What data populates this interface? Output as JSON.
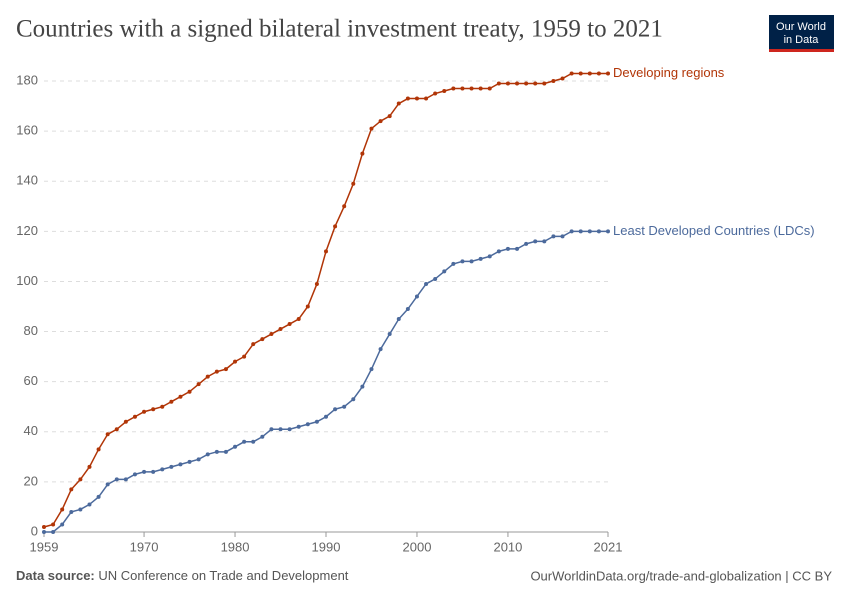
{
  "chart_data": {
    "type": "line",
    "title": "Countries with a signed bilateral investment treaty, 1959 to 2021",
    "logo": [
      "Our World",
      "in Data"
    ],
    "source_label": "Data source:",
    "source": "UN Conference on Trade and Development",
    "url": "OurWorldinData.org/trade-and-globalization | CC BY",
    "x": [
      1959,
      1960,
      1961,
      1962,
      1963,
      1964,
      1965,
      1966,
      1967,
      1968,
      1969,
      1970,
      1971,
      1972,
      1973,
      1974,
      1975,
      1976,
      1977,
      1978,
      1979,
      1980,
      1981,
      1982,
      1983,
      1984,
      1985,
      1986,
      1987,
      1988,
      1989,
      1990,
      1991,
      1992,
      1993,
      1994,
      1995,
      1996,
      1997,
      1998,
      1999,
      2000,
      2001,
      2002,
      2003,
      2004,
      2005,
      2006,
      2007,
      2008,
      2009,
      2010,
      2011,
      2012,
      2013,
      2014,
      2015,
      2016,
      2017,
      2018,
      2019,
      2020,
      2021
    ],
    "series": [
      {
        "name": "Developing regions",
        "color": "#b13507",
        "values": [
          2,
          3,
          9,
          17,
          21,
          26,
          33,
          39,
          41,
          44,
          46,
          48,
          49,
          50,
          52,
          54,
          56,
          59,
          62,
          64,
          65,
          68,
          70,
          75,
          77,
          79,
          81,
          83,
          85,
          90,
          99,
          112,
          122,
          130,
          139,
          151,
          161,
          164,
          166,
          171,
          173,
          173,
          173,
          175,
          176,
          177,
          177,
          177,
          177,
          177,
          179,
          179,
          179,
          179,
          179,
          179,
          180,
          181,
          183,
          183,
          183,
          183,
          183
        ]
      },
      {
        "name": "Least Developed Countries (LDCs)",
        "color": "#4c6a9c",
        "values": [
          0,
          0,
          3,
          8,
          9,
          11,
          14,
          19,
          21,
          21,
          23,
          24,
          24,
          25,
          26,
          27,
          28,
          29,
          31,
          32,
          32,
          34,
          36,
          36,
          38,
          41,
          41,
          41,
          42,
          43,
          44,
          46,
          49,
          50,
          53,
          58,
          65,
          73,
          79,
          85,
          89,
          94,
          99,
          101,
          104,
          107,
          108,
          108,
          109,
          110,
          112,
          113,
          113,
          115,
          116,
          116,
          118,
          118,
          120,
          120,
          120,
          120,
          120
        ]
      }
    ],
    "xlim": [
      1959,
      2021
    ],
    "xticks": [
      1959,
      1970,
      1980,
      1990,
      2000,
      2010,
      2021
    ],
    "ylim": [
      0,
      180
    ],
    "yticks": [
      0,
      20,
      40,
      60,
      80,
      100,
      120,
      140,
      160,
      180
    ],
    "grid": true
  }
}
